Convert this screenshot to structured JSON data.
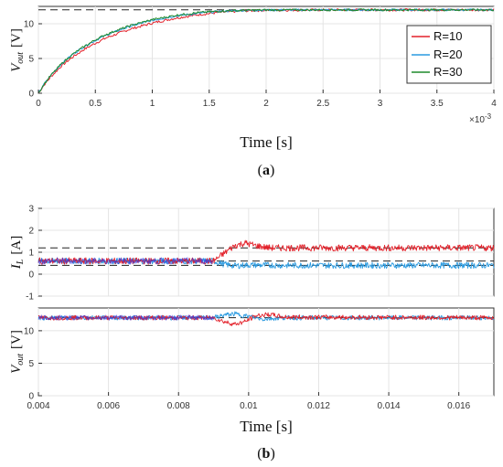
{
  "colors": {
    "R10": "#e3212a",
    "R20": "#2a9ae0",
    "R30": "#1f8a2c",
    "blue_dark": "#3a3ae0",
    "ref": "#222222"
  },
  "chart_data": [
    {
      "id": "a",
      "type": "line",
      "caption": "a",
      "xlabel": "Time [s]",
      "ylabel": "Vout [V]",
      "ylabel_main": "V",
      "ylabel_sub": "out",
      "ylabel_unit": "[V]",
      "x_multiplier": "×10",
      "x_multiplier_exp": "-3",
      "xlim": [
        0,
        4
      ],
      "ylim": [
        0,
        12.5
      ],
      "xticks": [
        "0",
        "0.5",
        "1",
        "1.5",
        "2",
        "2.5",
        "3",
        "3.5",
        "4"
      ],
      "xtick_values": [
        0,
        0.5,
        1,
        1.5,
        2,
        2.5,
        3,
        3.5,
        4
      ],
      "yticks": [
        "0",
        "5",
        "10"
      ],
      "ytick_values": [
        0,
        5,
        10
      ],
      "grid": true,
      "legend_position": "top-right",
      "reference_line": 12,
      "series": [
        {
          "name": "R=10",
          "color_key": "R10",
          "x": [
            0,
            0.05,
            0.1,
            0.2,
            0.3,
            0.4,
            0.5,
            0.6,
            0.8,
            1.0,
            1.2,
            1.4,
            1.6,
            1.8,
            2.0,
            2.5,
            3.0,
            3.5,
            4.0
          ],
          "y": [
            0,
            1.2,
            2.2,
            3.9,
            5.2,
            6.3,
            7.2,
            8.0,
            9.2,
            10.1,
            10.8,
            11.3,
            11.65,
            11.85,
            11.95,
            12.0,
            12.0,
            12.0,
            12.0
          ]
        },
        {
          "name": "R=20",
          "color_key": "R20",
          "x": [
            0,
            0.05,
            0.1,
            0.2,
            0.3,
            0.4,
            0.5,
            0.6,
            0.8,
            1.0,
            1.2,
            1.4,
            1.6,
            1.8,
            2.0,
            2.5,
            3.0,
            3.5,
            4.0
          ],
          "y": [
            0,
            1.3,
            2.4,
            4.2,
            5.6,
            6.7,
            7.6,
            8.4,
            9.6,
            10.5,
            11.1,
            11.5,
            11.8,
            11.92,
            11.98,
            12.0,
            12.0,
            12.0,
            12.0
          ]
        },
        {
          "name": "R=30",
          "color_key": "R30",
          "x": [
            0,
            0.05,
            0.1,
            0.2,
            0.3,
            0.4,
            0.5,
            0.6,
            0.8,
            1.0,
            1.2,
            1.4,
            1.6,
            1.8,
            2.0,
            2.5,
            3.0,
            3.5,
            4.0
          ],
          "y": [
            0,
            1.3,
            2.4,
            4.2,
            5.6,
            6.7,
            7.7,
            8.5,
            9.7,
            10.6,
            11.2,
            11.6,
            11.82,
            11.93,
            11.98,
            12.0,
            12.0,
            12.0,
            12.0
          ]
        }
      ]
    },
    {
      "id": "b1",
      "type": "line",
      "caption": "b",
      "xlabel": "",
      "ylabel": "IL [A]",
      "ylabel_main": "I",
      "ylabel_sub": "L",
      "ylabel_unit": "[A]",
      "xlim": [
        0.004,
        0.017
      ],
      "ylim": [
        -1,
        3
      ],
      "yticks": [
        "-1",
        "0",
        "1",
        "2",
        "3"
      ],
      "ytick_values": [
        -1,
        0,
        1,
        2,
        3
      ],
      "xtick_values": [
        0.004,
        0.006,
        0.008,
        0.01,
        0.012,
        0.014,
        0.016
      ],
      "grid": true,
      "reference_lines": [
        1.2,
        0.6,
        0.4
      ],
      "series": [
        {
          "name": "",
          "color_key": "R20",
          "x": [
            0.004,
            0.009,
            0.0093,
            0.0096,
            0.01,
            0.011,
            0.017
          ],
          "y": [
            0.6,
            0.6,
            0.45,
            0.38,
            0.42,
            0.4,
            0.4
          ]
        },
        {
          "name": "",
          "color_key": "R10",
          "x": [
            0.004,
            0.009,
            0.0093,
            0.0096,
            0.0099,
            0.0102,
            0.0106,
            0.011,
            0.017
          ],
          "y": [
            0.6,
            0.6,
            0.95,
            1.3,
            1.42,
            1.3,
            1.2,
            1.2,
            1.2
          ]
        }
      ]
    },
    {
      "id": "b2",
      "type": "line",
      "caption": "b",
      "xlabel": "Time [s]",
      "ylabel": "Vout [V]",
      "ylabel_main": "V",
      "ylabel_sub": "out",
      "ylabel_unit": "[V]",
      "xlim": [
        0.004,
        0.017
      ],
      "ylim": [
        0,
        13.5
      ],
      "xticks": [
        "0.004",
        "0.006",
        "0.008",
        "0.01",
        "0.012",
        "0.014",
        "0.016"
      ],
      "xtick_values": [
        0.004,
        0.006,
        0.008,
        0.01,
        0.012,
        0.014,
        0.016
      ],
      "yticks": [
        "0",
        "5",
        "10"
      ],
      "ytick_values": [
        0,
        5,
        10
      ],
      "grid": true,
      "reference_line": 12,
      "series": [
        {
          "name": "",
          "color_key": "R20",
          "x": [
            0.004,
            0.009,
            0.0093,
            0.0096,
            0.01,
            0.0104,
            0.011,
            0.017
          ],
          "y": [
            12,
            12,
            12.4,
            12.6,
            12.2,
            11.8,
            12,
            12
          ]
        },
        {
          "name": "",
          "color_key": "R10",
          "x": [
            0.004,
            0.009,
            0.0093,
            0.0096,
            0.0099,
            0.0102,
            0.0106,
            0.011,
            0.017
          ],
          "y": [
            12,
            12,
            11.4,
            11.0,
            11.4,
            12.3,
            12.5,
            12.1,
            12
          ]
        }
      ]
    }
  ]
}
